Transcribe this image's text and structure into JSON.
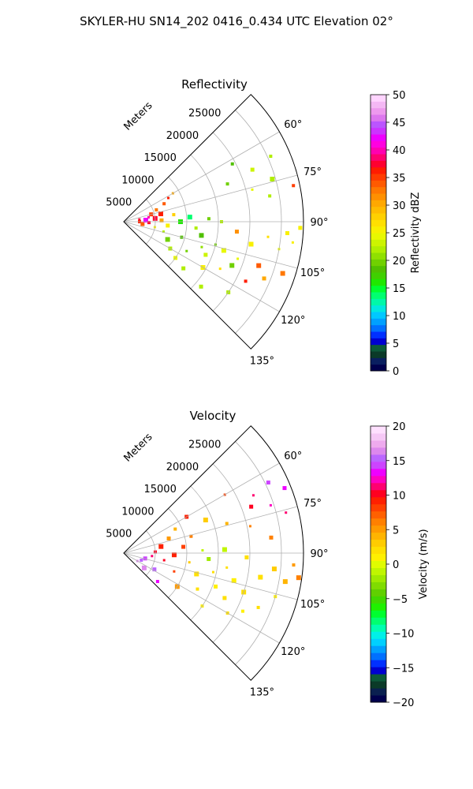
{
  "figure_title": "SKYLER-HU  SN14_202  0416_0.434 UTC Elevation 02°",
  "chart_data": [
    {
      "type": "heatmap",
      "projection": "polar-sector",
      "title": "Reflectivity",
      "radial_label": "Meters",
      "range_ticks": [
        "5000",
        "10000",
        "15000",
        "20000",
        "25000"
      ],
      "range_values": [
        5000,
        10000,
        15000,
        20000,
        25000
      ],
      "range_max": 28500,
      "azimuth_range": [
        45,
        135
      ],
      "azimuth_ticks": [
        "60°",
        "75°",
        "90°",
        "105°",
        "120°",
        "135°"
      ],
      "azimuth_values": [
        60,
        75,
        90,
        105,
        120,
        135
      ],
      "grid": true,
      "colorbar": {
        "label": "Reflectivity dBZ",
        "vmin": 0,
        "vmax": 50,
        "ticks": [
          "0",
          "5",
          "10",
          "15",
          "20",
          "25",
          "30",
          "35",
          "40",
          "45",
          "50"
        ],
        "tick_values": [
          0,
          5,
          10,
          15,
          20,
          25,
          30,
          35,
          40,
          45,
          50
        ],
        "colors": [
          "#00004c",
          "#0a1f60",
          "#0b3a28",
          "#0c5a3a",
          "#0000d0",
          "#0030ff",
          "#0070ff",
          "#00a0ff",
          "#00c8ff",
          "#00e8e0",
          "#00f8a8",
          "#00ff70",
          "#00ff30",
          "#20e800",
          "#40d000",
          "#50c000",
          "#70d000",
          "#90e000",
          "#b0ee00",
          "#ccf400",
          "#e8f800",
          "#f8f000",
          "#ffe000",
          "#ffd000",
          "#ffbc00",
          "#ffa800",
          "#ff9000",
          "#ff7800",
          "#ff5a00",
          "#ff3c00",
          "#ff1c00",
          "#ff0030",
          "#ff0070",
          "#ff00b0",
          "#ff00e0",
          "#ee00ff",
          "#cc33ff",
          "#bb55ff",
          "#dd77ee",
          "#ee99ee",
          "#f4b8f4",
          "#ffd4ff"
        ]
      },
      "cells": [
        {
          "r": 2500,
          "az": 82,
          "v": 38
        },
        {
          "r": 2500,
          "az": 90,
          "v": 36
        },
        {
          "r": 3000,
          "az": 97,
          "v": 34
        },
        {
          "r": 3500,
          "az": 86,
          "v": 42
        },
        {
          "r": 4000,
          "az": 80,
          "v": 40
        },
        {
          "r": 4000,
          "az": 92,
          "v": 37
        },
        {
          "r": 4500,
          "az": 75,
          "v": 35
        },
        {
          "r": 5000,
          "az": 84,
          "v": 38
        },
        {
          "r": 5000,
          "az": 100,
          "v": 26
        },
        {
          "r": 5500,
          "az": 70,
          "v": 33
        },
        {
          "r": 6000,
          "az": 88,
          "v": 30
        },
        {
          "r": 6000,
          "az": 78,
          "v": 36
        },
        {
          "r": 6500,
          "az": 104,
          "v": 22
        },
        {
          "r": 7000,
          "az": 66,
          "v": 34
        },
        {
          "r": 7000,
          "az": 95,
          "v": 25
        },
        {
          "r": 7500,
          "az": 112,
          "v": 20
        },
        {
          "r": 8000,
          "az": 62,
          "v": 36
        },
        {
          "r": 8000,
          "az": 82,
          "v": 28
        },
        {
          "r": 8500,
          "az": 120,
          "v": 22
        },
        {
          "r": 9000,
          "az": 90,
          "v": 16
        },
        {
          "r": 9000,
          "az": 60,
          "v": 30
        },
        {
          "r": 9500,
          "az": 105,
          "v": 18
        },
        {
          "r": 10000,
          "az": 125,
          "v": 24
        },
        {
          "r": 10500,
          "az": 86,
          "v": 14
        },
        {
          "r": 11000,
          "az": 115,
          "v": 20
        },
        {
          "r": 11500,
          "az": 95,
          "v": 22
        },
        {
          "r": 12000,
          "az": 128,
          "v": 22
        },
        {
          "r": 12500,
          "az": 100,
          "v": 19
        },
        {
          "r": 13000,
          "az": 108,
          "v": 21
        },
        {
          "r": 13500,
          "az": 88,
          "v": 20
        },
        {
          "r": 14000,
          "az": 112,
          "v": 23
        },
        {
          "r": 14500,
          "az": 120,
          "v": 26
        },
        {
          "r": 15000,
          "az": 104,
          "v": 20
        },
        {
          "r": 15500,
          "az": 90,
          "v": 22
        },
        {
          "r": 16000,
          "az": 130,
          "v": 22
        },
        {
          "r": 16500,
          "az": 106,
          "v": 24
        },
        {
          "r": 17000,
          "az": 116,
          "v": 27
        },
        {
          "r": 17500,
          "az": 70,
          "v": 20
        },
        {
          "r": 18000,
          "az": 95,
          "v": 32
        },
        {
          "r": 18500,
          "az": 112,
          "v": 20
        },
        {
          "r": 19000,
          "az": 108,
          "v": 24
        },
        {
          "r": 19500,
          "az": 62,
          "v": 18
        },
        {
          "r": 20000,
          "az": 124,
          "v": 22
        },
        {
          "r": 20500,
          "az": 100,
          "v": 26
        },
        {
          "r": 21000,
          "az": 76,
          "v": 24
        },
        {
          "r": 21500,
          "az": 116,
          "v": 36
        },
        {
          "r": 22000,
          "az": 68,
          "v": 23
        },
        {
          "r": 22500,
          "az": 108,
          "v": 34
        },
        {
          "r": 23000,
          "az": 96,
          "v": 27
        },
        {
          "r": 23500,
          "az": 80,
          "v": 22
        },
        {
          "r": 24000,
          "az": 112,
          "v": 30
        },
        {
          "r": 24500,
          "az": 74,
          "v": 22
        },
        {
          "r": 25000,
          "az": 100,
          "v": 24
        },
        {
          "r": 25500,
          "az": 66,
          "v": 22
        },
        {
          "r": 26000,
          "az": 94,
          "v": 26
        },
        {
          "r": 26500,
          "az": 108,
          "v": 33
        },
        {
          "r": 27000,
          "az": 97,
          "v": 25
        },
        {
          "r": 27500,
          "az": 78,
          "v": 35
        },
        {
          "r": 28000,
          "az": 92,
          "v": 25
        }
      ]
    },
    {
      "type": "heatmap",
      "projection": "polar-sector",
      "title": "Velocity",
      "radial_label": "Meters",
      "range_ticks": [
        "5000",
        "10000",
        "15000",
        "20000",
        "25000"
      ],
      "range_values": [
        5000,
        10000,
        15000,
        20000,
        25000
      ],
      "range_max": 28500,
      "azimuth_range": [
        45,
        135
      ],
      "azimuth_ticks": [
        "60°",
        "75°",
        "90°",
        "105°",
        "120°",
        "135°"
      ],
      "azimuth_values": [
        60,
        75,
        90,
        105,
        120,
        135
      ],
      "grid": true,
      "colorbar": {
        "label": "Velocity (m/s)",
        "vmin": -20,
        "vmax": 20,
        "ticks": [
          "−20",
          "−15",
          "−10",
          "−5",
          "0",
          "5",
          "10",
          "15",
          "20"
        ],
        "tick_values": [
          -20,
          -15,
          -10,
          -5,
          0,
          5,
          10,
          15,
          20
        ],
        "colors": [
          "#00004c",
          "#0a2050",
          "#0b3a28",
          "#0c5a3a",
          "#0000d0",
          "#0030ff",
          "#0070ff",
          "#00a0ff",
          "#00d0ff",
          "#00f0e8",
          "#00ffb0",
          "#00ff70",
          "#00ff30",
          "#20f000",
          "#40d800",
          "#60d000",
          "#80dc00",
          "#a0ea00",
          "#c0f600",
          "#e0fc00",
          "#fff000",
          "#ffe000",
          "#ffcc00",
          "#ffb400",
          "#ff9a00",
          "#ff8000",
          "#ff6000",
          "#ff4000",
          "#ff2000",
          "#ff0020",
          "#ff0070",
          "#ff00c0",
          "#ee00ff",
          "#cc44ff",
          "#bb66ff",
          "#dd88ee",
          "#eeaaee",
          "#f6c8f6",
          "#ffe0ff"
        ]
      },
      "cells": [
        {
          "r": 2500,
          "az": 120,
          "v": 16
        },
        {
          "r": 3000,
          "az": 112,
          "v": 15
        },
        {
          "r": 3500,
          "az": 104,
          "v": 14
        },
        {
          "r": 4000,
          "az": 126,
          "v": 16
        },
        {
          "r": 4500,
          "az": 96,
          "v": 11
        },
        {
          "r": 5000,
          "az": 88,
          "v": 10
        },
        {
          "r": 5500,
          "az": 118,
          "v": 15
        },
        {
          "r": 6000,
          "az": 80,
          "v": 9
        },
        {
          "r": 6500,
          "az": 100,
          "v": 10
        },
        {
          "r": 7000,
          "az": 130,
          "v": 13
        },
        {
          "r": 7500,
          "az": 72,
          "v": 5
        },
        {
          "r": 8000,
          "az": 92,
          "v": 9
        },
        {
          "r": 8500,
          "az": 110,
          "v": 8
        },
        {
          "r": 9000,
          "az": 65,
          "v": 4
        },
        {
          "r": 9500,
          "az": 84,
          "v": 8
        },
        {
          "r": 10000,
          "az": 122,
          "v": 5
        },
        {
          "r": 10500,
          "az": 98,
          "v": 3
        },
        {
          "r": 11000,
          "az": 76,
          "v": 6
        },
        {
          "r": 11500,
          "az": 60,
          "v": 9
        },
        {
          "r": 12000,
          "az": 106,
          "v": 2
        },
        {
          "r": 12500,
          "az": 88,
          "v": -1
        },
        {
          "r": 13000,
          "az": 116,
          "v": 2
        },
        {
          "r": 13500,
          "az": 94,
          "v": -2
        },
        {
          "r": 14000,
          "az": 68,
          "v": 3
        },
        {
          "r": 14500,
          "az": 102,
          "v": 2
        },
        {
          "r": 15000,
          "az": 124,
          "v": 1
        },
        {
          "r": 15500,
          "az": 110,
          "v": 1
        },
        {
          "r": 16000,
          "az": 88,
          "v": -1
        },
        {
          "r": 16500,
          "az": 98,
          "v": 2
        },
        {
          "r": 17000,
          "az": 74,
          "v": 4
        },
        {
          "r": 17500,
          "az": 114,
          "v": 2
        },
        {
          "r": 18000,
          "az": 104,
          "v": 1
        },
        {
          "r": 18500,
          "az": 60,
          "v": 8
        },
        {
          "r": 19000,
          "az": 120,
          "v": 2
        },
        {
          "r": 19500,
          "az": 92,
          "v": 2
        },
        {
          "r": 20000,
          "az": 108,
          "v": 2
        },
        {
          "r": 20500,
          "az": 78,
          "v": 6
        },
        {
          "r": 21000,
          "az": 116,
          "v": 1
        },
        {
          "r": 21500,
          "az": 70,
          "v": 10
        },
        {
          "r": 22000,
          "az": 100,
          "v": 2
        },
        {
          "r": 22500,
          "az": 66,
          "v": 11
        },
        {
          "r": 23000,
          "az": 112,
          "v": 2
        },
        {
          "r": 23500,
          "az": 84,
          "v": 6
        },
        {
          "r": 24000,
          "az": 96,
          "v": 3
        },
        {
          "r": 24500,
          "az": 72,
          "v": 12
        },
        {
          "r": 25000,
          "az": 106,
          "v": 1
        },
        {
          "r": 25500,
          "az": 64,
          "v": 14
        },
        {
          "r": 26000,
          "az": 100,
          "v": 4
        },
        {
          "r": 26500,
          "az": 76,
          "v": 11
        },
        {
          "r": 27000,
          "az": 94,
          "v": 5
        },
        {
          "r": 27500,
          "az": 68,
          "v": 13
        },
        {
          "r": 28000,
          "az": 98,
          "v": 6
        }
      ]
    }
  ]
}
